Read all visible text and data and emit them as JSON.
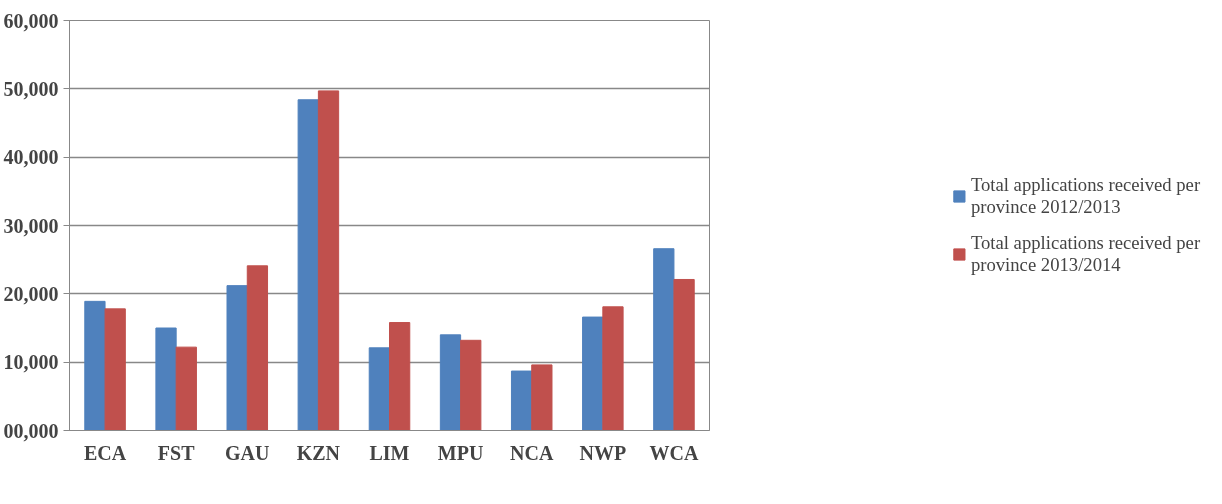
{
  "chart_data": {
    "type": "bar",
    "categories": [
      "ECA",
      "FST",
      "GAU",
      "KZN",
      "LIM",
      "MPU",
      "NCA",
      "NWP",
      "WCA"
    ],
    "series": [
      {
        "name": "Total applications received per province 2012/2013",
        "color": "#4f81bd",
        "values": [
          18900,
          15000,
          21200,
          48400,
          12100,
          14000,
          8700,
          16600,
          26600
        ]
      },
      {
        "name": "Total applications received per province 2013/2014",
        "color": "#c0504d",
        "values": [
          17800,
          12200,
          24100,
          49700,
          15800,
          13200,
          9600,
          18100,
          22100
        ]
      }
    ],
    "ylim": [
      0,
      60000
    ],
    "yticks": [
      {
        "value": 0,
        "label": "00,000"
      },
      {
        "value": 10000,
        "label": "10,000"
      },
      {
        "value": 20000,
        "label": "20,000"
      },
      {
        "value": 30000,
        "label": "30,000"
      },
      {
        "value": 40000,
        "label": "40,000"
      },
      {
        "value": 50000,
        "label": "50,000"
      },
      {
        "value": 60000,
        "label": "60,000"
      }
    ],
    "grid": "y",
    "legend": "right"
  }
}
